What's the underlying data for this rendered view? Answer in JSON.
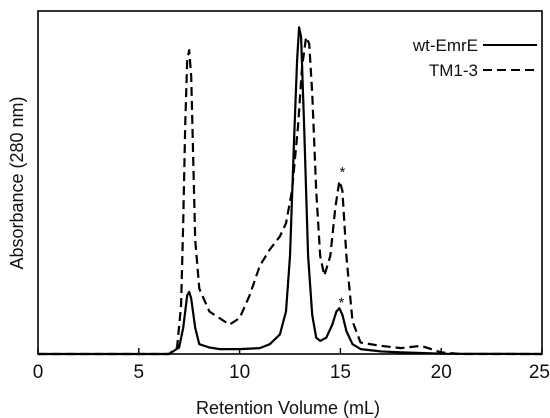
{
  "chart_data": {
    "type": "line",
    "title": "",
    "xlabel": "Retention Volume (mL)",
    "ylabel": "Absorbance (280 nm)",
    "xlim": [
      0,
      25
    ],
    "ylim": [
      0,
      1.05
    ],
    "x_ticks": [
      0,
      5,
      10,
      15,
      20,
      25
    ],
    "x_tick_labels": [
      "0",
      "5",
      "10",
      "15",
      "20",
      "25"
    ],
    "y_ticks_visible": false,
    "grid": false,
    "legend_position": "top-right",
    "series": [
      {
        "name": "wt-EmrE",
        "style": "solid",
        "color": "#000000",
        "points": [
          [
            0,
            0.0
          ],
          [
            6.5,
            0.0
          ],
          [
            7.0,
            0.02
          ],
          [
            7.2,
            0.08
          ],
          [
            7.4,
            0.18
          ],
          [
            7.5,
            0.19
          ],
          [
            7.6,
            0.17
          ],
          [
            7.8,
            0.08
          ],
          [
            8.0,
            0.03
          ],
          [
            8.5,
            0.02
          ],
          [
            9.0,
            0.015
          ],
          [
            10,
            0.015
          ],
          [
            11,
            0.018
          ],
          [
            11.5,
            0.03
          ],
          [
            12.0,
            0.06
          ],
          [
            12.3,
            0.13
          ],
          [
            12.5,
            0.3
          ],
          [
            12.7,
            0.65
          ],
          [
            12.85,
            0.9
          ],
          [
            12.95,
            1.0
          ],
          [
            13.05,
            0.97
          ],
          [
            13.2,
            0.7
          ],
          [
            13.4,
            0.3
          ],
          [
            13.6,
            0.12
          ],
          [
            13.8,
            0.05
          ],
          [
            14.0,
            0.04
          ],
          [
            14.3,
            0.05
          ],
          [
            14.6,
            0.09
          ],
          [
            14.8,
            0.13
          ],
          [
            14.95,
            0.14
          ],
          [
            15.1,
            0.12
          ],
          [
            15.3,
            0.07
          ],
          [
            15.6,
            0.03
          ],
          [
            16,
            0.015
          ],
          [
            17,
            0.008
          ],
          [
            18,
            0.005
          ],
          [
            19,
            0.003
          ],
          [
            20,
            0.001
          ],
          [
            25,
            0.0
          ]
        ]
      },
      {
        "name": "TM1-3",
        "style": "dashed",
        "color": "#000000",
        "points": [
          [
            0,
            0.0
          ],
          [
            6.5,
            0.0
          ],
          [
            6.9,
            0.02
          ],
          [
            7.1,
            0.15
          ],
          [
            7.2,
            0.4
          ],
          [
            7.3,
            0.7
          ],
          [
            7.4,
            0.9
          ],
          [
            7.5,
            0.93
          ],
          [
            7.6,
            0.85
          ],
          [
            7.7,
            0.6
          ],
          [
            7.8,
            0.35
          ],
          [
            8.0,
            0.2
          ],
          [
            8.5,
            0.13
          ],
          [
            9.0,
            0.11
          ],
          [
            9.5,
            0.09
          ],
          [
            10.0,
            0.11
          ],
          [
            10.5,
            0.18
          ],
          [
            11.0,
            0.27
          ],
          [
            11.5,
            0.32
          ],
          [
            12.0,
            0.36
          ],
          [
            12.3,
            0.4
          ],
          [
            12.6,
            0.5
          ],
          [
            12.9,
            0.7
          ],
          [
            13.1,
            0.88
          ],
          [
            13.3,
            0.97
          ],
          [
            13.45,
            0.95
          ],
          [
            13.6,
            0.8
          ],
          [
            13.8,
            0.5
          ],
          [
            14.0,
            0.3
          ],
          [
            14.2,
            0.24
          ],
          [
            14.5,
            0.3
          ],
          [
            14.75,
            0.45
          ],
          [
            14.95,
            0.53
          ],
          [
            15.1,
            0.5
          ],
          [
            15.3,
            0.3
          ],
          [
            15.6,
            0.1
          ],
          [
            16,
            0.035
          ],
          [
            17,
            0.025
          ],
          [
            18,
            0.018
          ],
          [
            19,
            0.025
          ],
          [
            19.5,
            0.015
          ],
          [
            20,
            0.005
          ],
          [
            21,
            0.0
          ],
          [
            25,
            0.0
          ]
        ]
      }
    ],
    "annotations": [
      {
        "text": "*",
        "x": 15.1,
        "y": 0.56
      },
      {
        "text": "*",
        "x": 15.05,
        "y": 0.16
      }
    ]
  }
}
